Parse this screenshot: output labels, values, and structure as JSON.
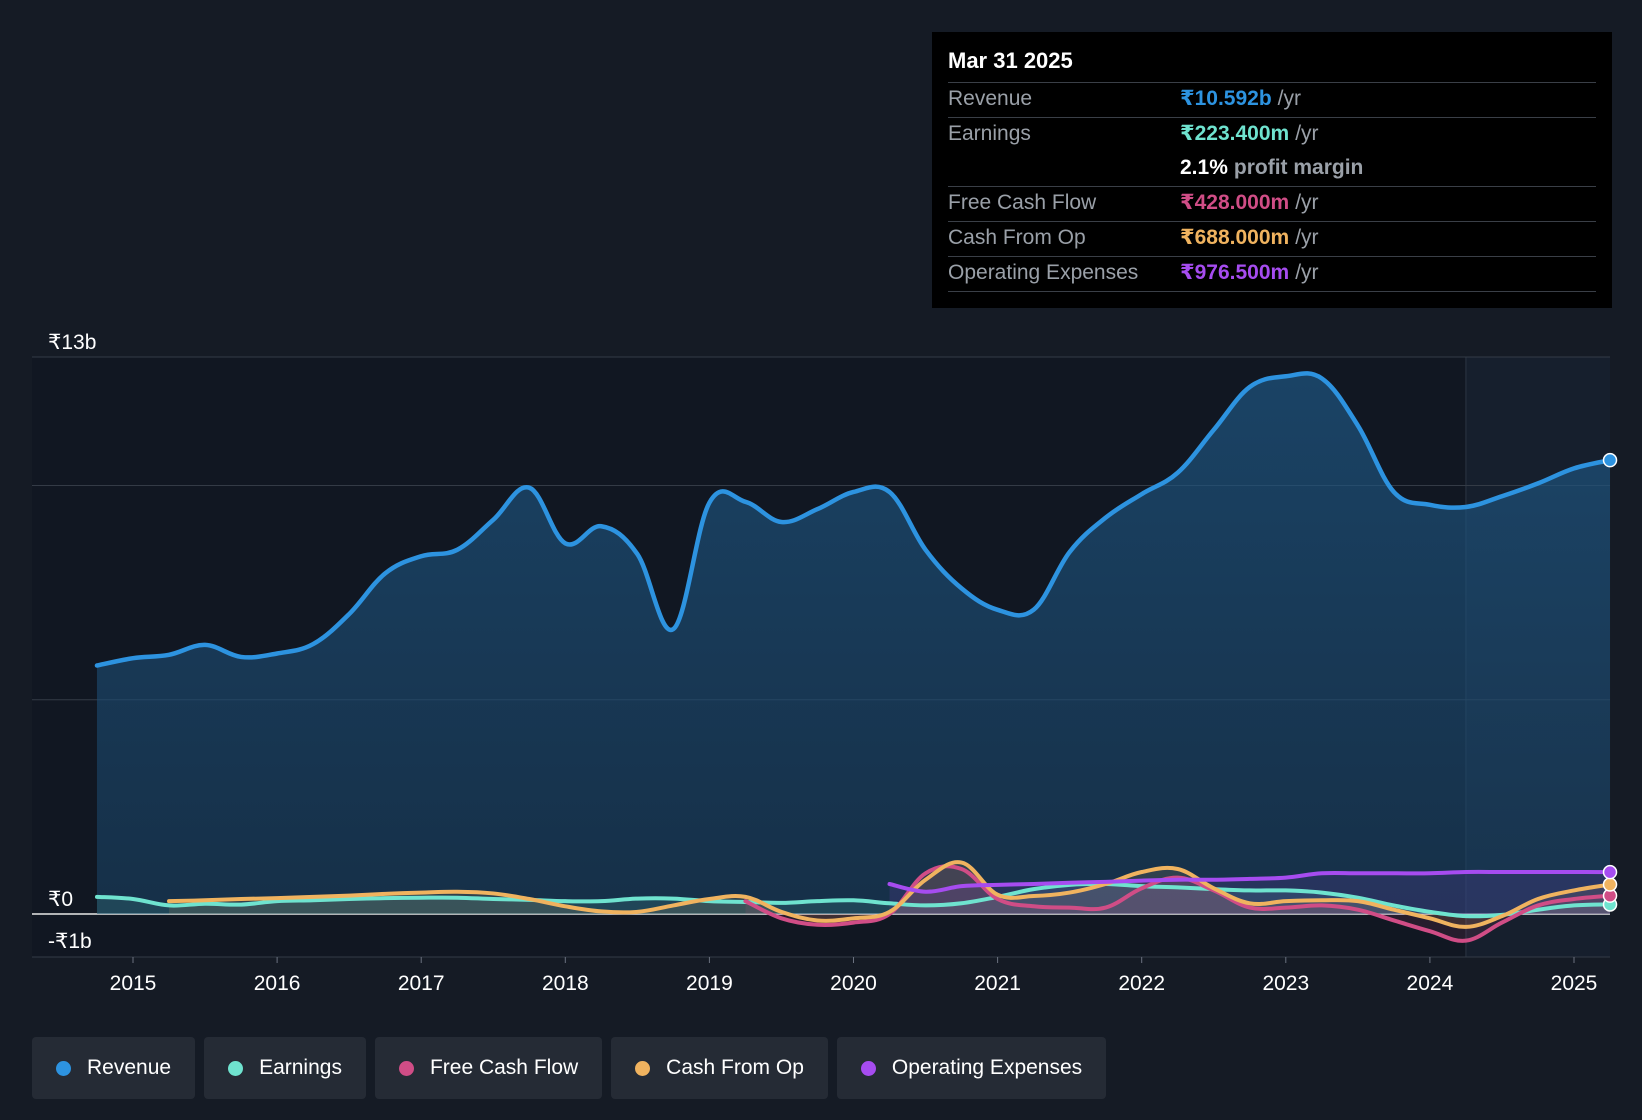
{
  "tooltip": {
    "date": "Mar 31 2025",
    "rows": [
      {
        "label": "Revenue",
        "value": "₹10.592b",
        "unit": "/yr",
        "color": "#2d93e0"
      },
      {
        "label": "Earnings",
        "value": "₹223.400m",
        "unit": "/yr",
        "color": "#6fe3cf"
      },
      {
        "label": "",
        "value": "2.1%",
        "unit": "profit margin",
        "color": "#ffffff"
      },
      {
        "label": "Free Cash Flow",
        "value": "₹428.000m",
        "unit": "/yr",
        "color": "#d04d86"
      },
      {
        "label": "Cash From Op",
        "value": "₹688.000m",
        "unit": "/yr",
        "color": "#f0b35f"
      },
      {
        "label": "Operating Expenses",
        "value": "₹976.500m",
        "unit": "/yr",
        "color": "#a64cf0"
      }
    ]
  },
  "legend": [
    {
      "label": "Revenue",
      "color": "#2d93e0"
    },
    {
      "label": "Earnings",
      "color": "#6fe3cf"
    },
    {
      "label": "Free Cash Flow",
      "color": "#d04d86"
    },
    {
      "label": "Cash From Op",
      "color": "#f0b35f"
    },
    {
      "label": "Operating Expenses",
      "color": "#a64cf0"
    }
  ],
  "chart_data": {
    "type": "line",
    "y_labels": {
      "top": "₹13b",
      "zero": "₹0",
      "bottom": "-₹1b"
    },
    "ylim": [
      -1,
      13
    ],
    "xlim": [
      2014.55,
      2025.25
    ],
    "x_ticks": [
      2015,
      2016,
      2017,
      2018,
      2019,
      2020,
      2021,
      2022,
      2023,
      2024,
      2025
    ],
    "x_tick_labels": [
      "2015",
      "2016",
      "2017",
      "2018",
      "2019",
      "2020",
      "2021",
      "2022",
      "2023",
      "2024",
      "2025"
    ],
    "gridlines_at": [
      13,
      10,
      5,
      0
    ],
    "forecast_shade_start": 2024.25,
    "series": [
      {
        "name": "Revenue",
        "color": "#2d93e0",
        "area": true,
        "points": [
          [
            2014.75,
            5.8
          ],
          [
            2015.0,
            5.97
          ],
          [
            2015.25,
            6.05
          ],
          [
            2015.5,
            6.28
          ],
          [
            2015.75,
            6.0
          ],
          [
            2016.0,
            6.08
          ],
          [
            2016.25,
            6.3
          ],
          [
            2016.5,
            7.0
          ],
          [
            2016.75,
            7.95
          ],
          [
            2017.0,
            8.35
          ],
          [
            2017.25,
            8.5
          ],
          [
            2017.5,
            9.2
          ],
          [
            2017.75,
            9.95
          ],
          [
            2018.0,
            8.65
          ],
          [
            2018.25,
            9.05
          ],
          [
            2018.5,
            8.4
          ],
          [
            2018.75,
            6.65
          ],
          [
            2019.0,
            9.6
          ],
          [
            2019.25,
            9.62
          ],
          [
            2019.5,
            9.15
          ],
          [
            2019.75,
            9.45
          ],
          [
            2020.0,
            9.85
          ],
          [
            2020.25,
            9.85
          ],
          [
            2020.5,
            8.5
          ],
          [
            2020.75,
            7.6
          ],
          [
            2021.0,
            7.1
          ],
          [
            2021.25,
            7.1
          ],
          [
            2021.5,
            8.45
          ],
          [
            2021.75,
            9.25
          ],
          [
            2022.0,
            9.8
          ],
          [
            2022.25,
            10.3
          ],
          [
            2022.5,
            11.3
          ],
          [
            2022.75,
            12.3
          ],
          [
            2023.0,
            12.55
          ],
          [
            2023.25,
            12.5
          ],
          [
            2023.5,
            11.4
          ],
          [
            2023.75,
            9.85
          ],
          [
            2024.0,
            9.55
          ],
          [
            2024.25,
            9.5
          ],
          [
            2024.5,
            9.75
          ],
          [
            2024.75,
            10.05
          ],
          [
            2025.0,
            10.4
          ],
          [
            2025.25,
            10.592
          ]
        ]
      },
      {
        "name": "Earnings",
        "color": "#6fe3cf",
        "area": false,
        "points": [
          [
            2014.75,
            0.4
          ],
          [
            2015.0,
            0.35
          ],
          [
            2015.25,
            0.2
          ],
          [
            2015.5,
            0.24
          ],
          [
            2015.75,
            0.22
          ],
          [
            2016.0,
            0.3
          ],
          [
            2016.25,
            0.32
          ],
          [
            2016.5,
            0.35
          ],
          [
            2016.75,
            0.37
          ],
          [
            2017.0,
            0.38
          ],
          [
            2017.25,
            0.38
          ],
          [
            2017.5,
            0.35
          ],
          [
            2017.75,
            0.33
          ],
          [
            2018.0,
            0.3
          ],
          [
            2018.25,
            0.3
          ],
          [
            2018.5,
            0.36
          ],
          [
            2018.75,
            0.36
          ],
          [
            2019.0,
            0.3
          ],
          [
            2019.25,
            0.28
          ],
          [
            2019.5,
            0.26
          ],
          [
            2019.75,
            0.3
          ],
          [
            2020.0,
            0.32
          ],
          [
            2020.25,
            0.25
          ],
          [
            2020.5,
            0.2
          ],
          [
            2020.75,
            0.25
          ],
          [
            2021.0,
            0.4
          ],
          [
            2021.25,
            0.58
          ],
          [
            2021.5,
            0.68
          ],
          [
            2021.75,
            0.7
          ],
          [
            2022.0,
            0.65
          ],
          [
            2022.25,
            0.62
          ],
          [
            2022.5,
            0.58
          ],
          [
            2022.75,
            0.55
          ],
          [
            2023.0,
            0.55
          ],
          [
            2023.25,
            0.5
          ],
          [
            2023.5,
            0.38
          ],
          [
            2023.75,
            0.2
          ],
          [
            2024.0,
            0.05
          ],
          [
            2024.25,
            -0.05
          ],
          [
            2024.5,
            -0.02
          ],
          [
            2024.75,
            0.1
          ],
          [
            2025.0,
            0.2
          ],
          [
            2025.25,
            0.223
          ]
        ]
      },
      {
        "name": "Free Cash Flow",
        "color": "#d04d86",
        "area": false,
        "points": [
          [
            2019.25,
            0.3
          ],
          [
            2019.5,
            -0.1
          ],
          [
            2019.75,
            -0.25
          ],
          [
            2020.0,
            -0.2
          ],
          [
            2020.25,
            0.0
          ],
          [
            2020.5,
            0.95
          ],
          [
            2020.75,
            1.05
          ],
          [
            2021.0,
            0.35
          ],
          [
            2021.25,
            0.18
          ],
          [
            2021.5,
            0.15
          ],
          [
            2021.75,
            0.15
          ],
          [
            2022.0,
            0.6
          ],
          [
            2022.25,
            0.85
          ],
          [
            2022.5,
            0.55
          ],
          [
            2022.75,
            0.15
          ],
          [
            2023.0,
            0.15
          ],
          [
            2023.25,
            0.2
          ],
          [
            2023.5,
            0.1
          ],
          [
            2023.75,
            -0.15
          ],
          [
            2024.0,
            -0.4
          ],
          [
            2024.25,
            -0.62
          ],
          [
            2024.5,
            -0.2
          ],
          [
            2024.75,
            0.2
          ],
          [
            2025.0,
            0.35
          ],
          [
            2025.25,
            0.428
          ]
        ]
      },
      {
        "name": "Cash From Op",
        "color": "#f0b35f",
        "area": false,
        "points": [
          [
            2015.25,
            0.3
          ],
          [
            2015.5,
            0.32
          ],
          [
            2015.75,
            0.35
          ],
          [
            2016.0,
            0.37
          ],
          [
            2016.25,
            0.4
          ],
          [
            2016.5,
            0.43
          ],
          [
            2016.75,
            0.47
          ],
          [
            2017.0,
            0.5
          ],
          [
            2017.25,
            0.52
          ],
          [
            2017.5,
            0.48
          ],
          [
            2017.75,
            0.35
          ],
          [
            2018.0,
            0.18
          ],
          [
            2018.25,
            0.06
          ],
          [
            2018.5,
            0.05
          ],
          [
            2018.75,
            0.2
          ],
          [
            2019.0,
            0.35
          ],
          [
            2019.25,
            0.4
          ],
          [
            2019.5,
            0.05
          ],
          [
            2019.75,
            -0.15
          ],
          [
            2020.0,
            -0.1
          ],
          [
            2020.25,
            0.05
          ],
          [
            2020.5,
            0.8
          ],
          [
            2020.75,
            1.2
          ],
          [
            2021.0,
            0.45
          ],
          [
            2021.25,
            0.42
          ],
          [
            2021.5,
            0.5
          ],
          [
            2021.75,
            0.7
          ],
          [
            2022.0,
            0.98
          ],
          [
            2022.25,
            1.05
          ],
          [
            2022.5,
            0.6
          ],
          [
            2022.75,
            0.25
          ],
          [
            2023.0,
            0.3
          ],
          [
            2023.25,
            0.32
          ],
          [
            2023.5,
            0.3
          ],
          [
            2023.75,
            0.1
          ],
          [
            2024.0,
            -0.1
          ],
          [
            2024.25,
            -0.3
          ],
          [
            2024.5,
            -0.05
          ],
          [
            2024.75,
            0.35
          ],
          [
            2025.0,
            0.55
          ],
          [
            2025.25,
            0.688
          ]
        ]
      },
      {
        "name": "Operating Expenses",
        "color": "#a64cf0",
        "area": false,
        "points": [
          [
            2020.25,
            0.7
          ],
          [
            2020.5,
            0.52
          ],
          [
            2020.75,
            0.65
          ],
          [
            2021.0,
            0.68
          ],
          [
            2021.25,
            0.7
          ],
          [
            2021.5,
            0.73
          ],
          [
            2021.75,
            0.75
          ],
          [
            2022.0,
            0.78
          ],
          [
            2022.25,
            0.8
          ],
          [
            2022.5,
            0.8
          ],
          [
            2022.75,
            0.82
          ],
          [
            2023.0,
            0.85
          ],
          [
            2023.25,
            0.95
          ],
          [
            2023.5,
            0.95
          ],
          [
            2023.75,
            0.95
          ],
          [
            2024.0,
            0.95
          ],
          [
            2024.25,
            0.98
          ],
          [
            2024.5,
            0.98
          ],
          [
            2024.75,
            0.98
          ],
          [
            2025.0,
            0.98
          ],
          [
            2025.25,
            0.9765
          ]
        ]
      }
    ]
  }
}
